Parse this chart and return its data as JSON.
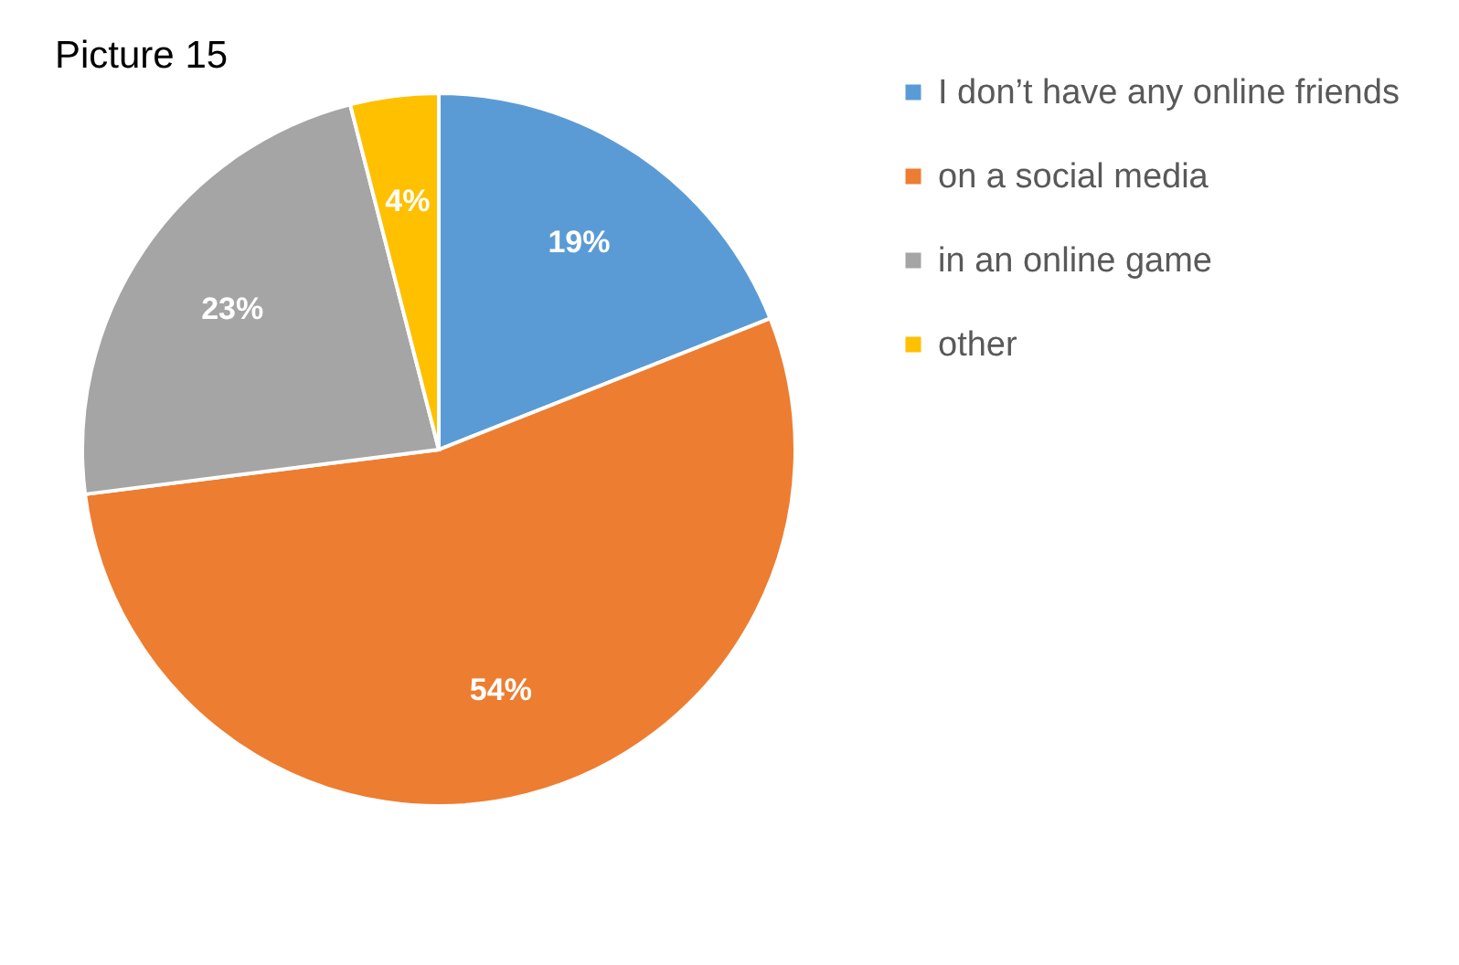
{
  "chart_data": {
    "type": "pie",
    "title": "Picture 15",
    "categories": [
      "I don’t have any online friends",
      "on a social media",
      "in an online game",
      "other"
    ],
    "values": [
      19,
      54,
      23,
      4
    ],
    "colors": [
      "#5b9bd5",
      "#ed7d31",
      "#a5a5a5",
      "#ffc000"
    ],
    "value_labels": [
      "19%",
      "54%",
      "23%",
      "4%"
    ],
    "legend": "right"
  }
}
